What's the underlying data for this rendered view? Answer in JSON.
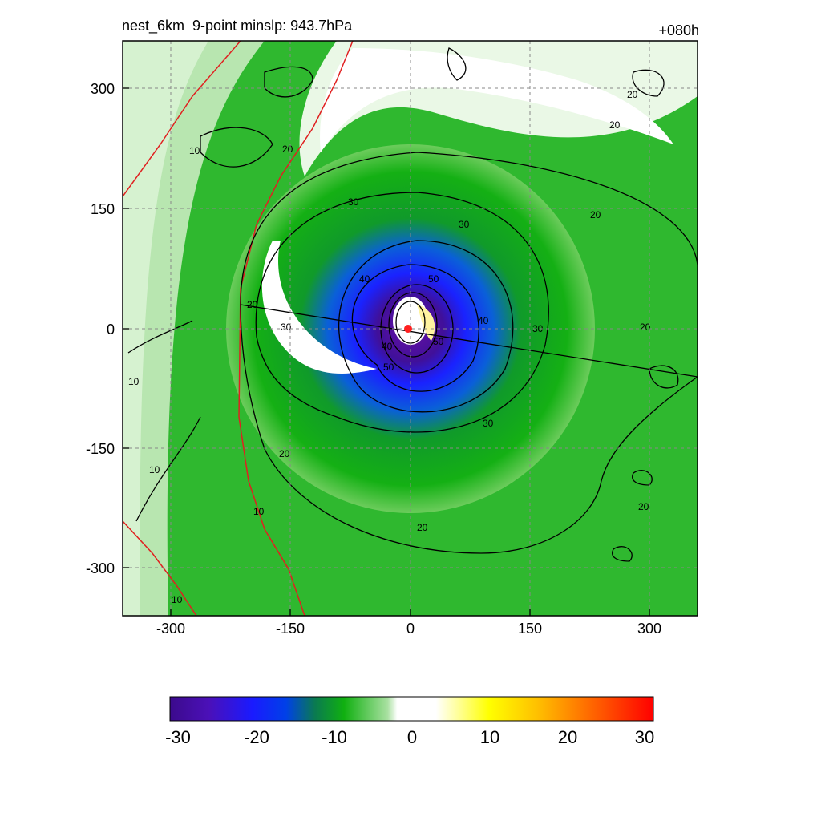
{
  "header": {
    "title": "nest_6km  9-point minslp: 943.7hPa",
    "forecast_hour": "+080h"
  },
  "axes": {
    "x_ticks": [
      "-300",
      "-150",
      "0",
      "150",
      "300"
    ],
    "y_ticks": [
      "300",
      "150",
      "0",
      "-150",
      "-300"
    ],
    "x_values": [
      -300,
      -150,
      0,
      150,
      300
    ],
    "y_values": [
      300,
      150,
      0,
      -150,
      -300
    ],
    "range": [
      -360,
      360
    ]
  },
  "colorbar": {
    "labels": [
      "-30",
      "-20",
      "-10",
      "0",
      "10",
      "20",
      "30"
    ],
    "values": [
      -30,
      -20,
      -10,
      0,
      10,
      20,
      30
    ],
    "colors": [
      "#3b0a8c",
      "#4b0fb0",
      "#1a1aff",
      "#0050ff",
      "#0a8a4a",
      "#10b010",
      "#9edc8e",
      "#ffffff",
      "#ffff80",
      "#ffff00",
      "#ffc000",
      "#ff7000",
      "#ff0000"
    ]
  },
  "contours": {
    "labels": [
      "10",
      "20",
      "30",
      "40",
      "50"
    ]
  },
  "colors": {
    "center_marker": "#ff2020",
    "red_line": "#e02020",
    "grid": "#888888"
  }
}
